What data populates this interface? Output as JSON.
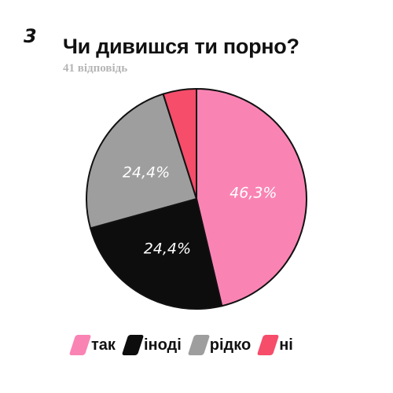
{
  "logo_text": "3",
  "chart_data": {
    "type": "pie",
    "title": "Чи дивишся ти порно?",
    "subtitle": "41 відповідь",
    "slices": [
      {
        "name": "так",
        "value": 46.3,
        "label": "46,3%",
        "color": "#f984b4"
      },
      {
        "name": "іноді",
        "value": 24.4,
        "label": "24,4%",
        "color": "#0d0d0d"
      },
      {
        "name": "рідко",
        "value": 24.4,
        "label": "24,4%",
        "color": "#9e9e9e"
      },
      {
        "name": "ні",
        "value": 4.9,
        "label": "",
        "color": "#f54d6a"
      }
    ],
    "legend_position": "bottom",
    "start_angle_deg": 0,
    "direction": "clockwise"
  }
}
